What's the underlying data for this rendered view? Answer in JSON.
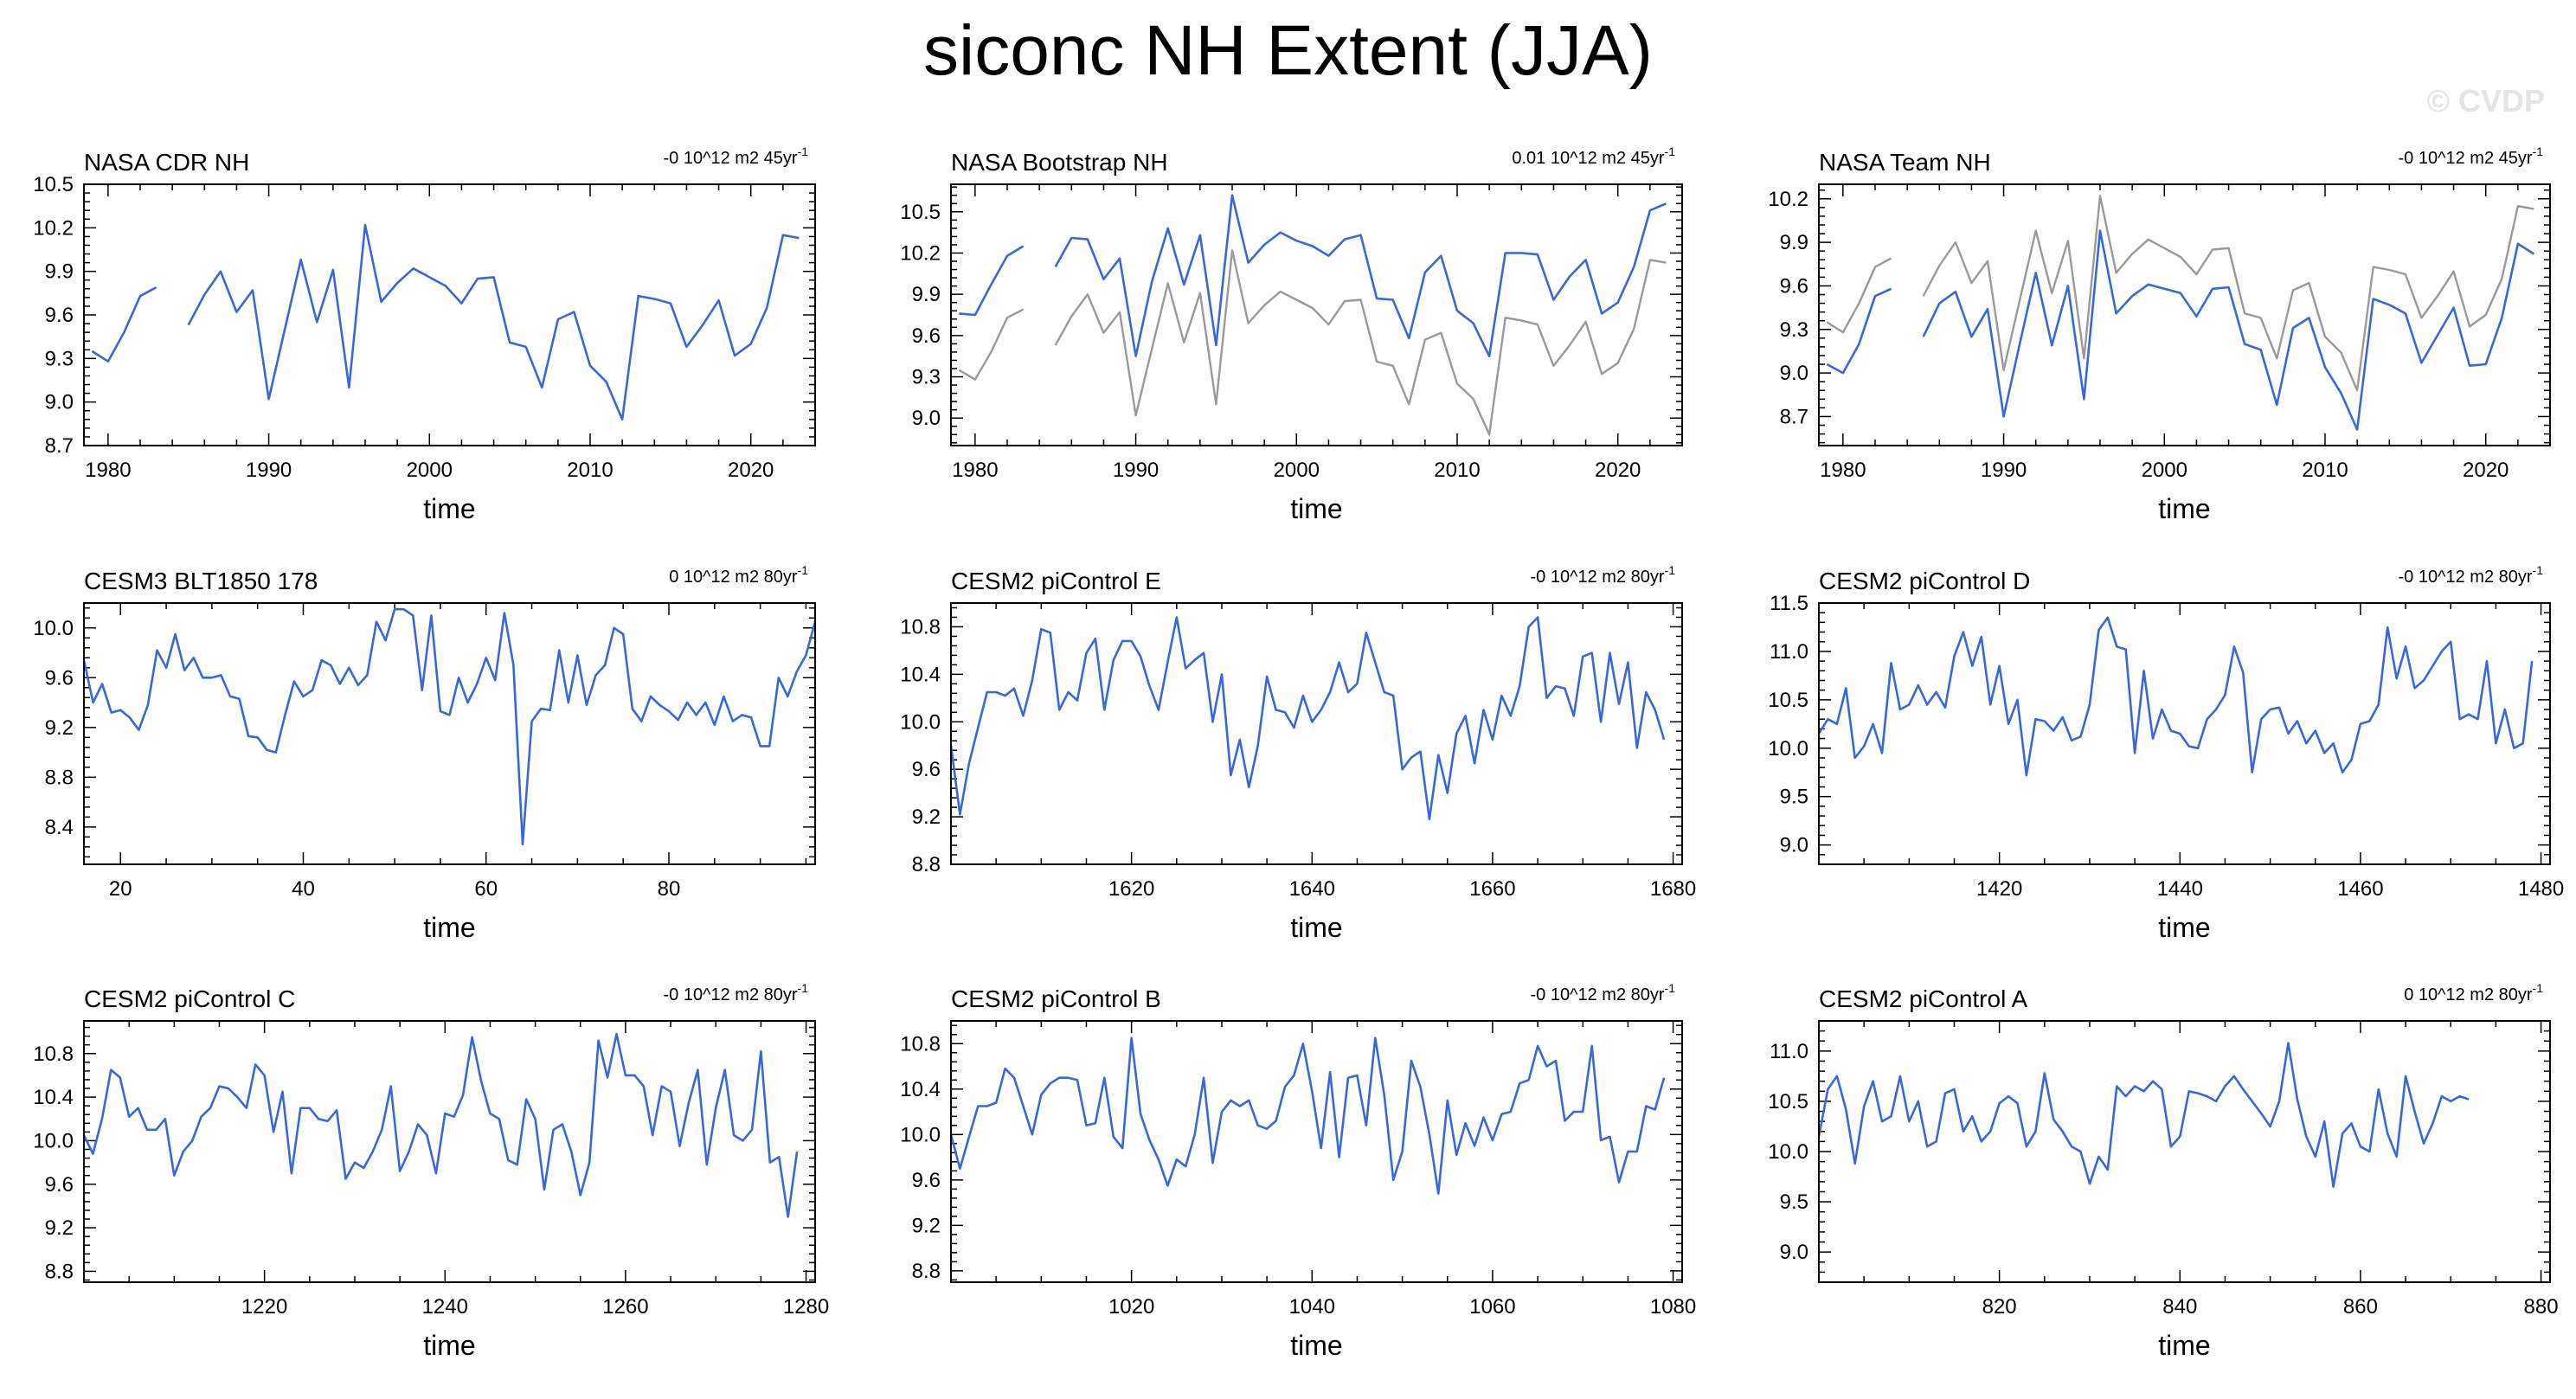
{
  "title": "siconc NH Extent (JJA)",
  "watermark": "© CVDP",
  "colors": {
    "primary_line": "#3b68d8",
    "secondary_line": "#9a9a9a",
    "axis": "#000000"
  },
  "chart_data": [
    {
      "type": "line",
      "title": "NASA CDR NH",
      "trend": "-0 10^12 m2 45yr",
      "trend_sup": "-1",
      "xlabel": "time",
      "xlim": [
        1978.5,
        2024
      ],
      "ylim": [
        8.7,
        10.5
      ],
      "xticks": [
        1980,
        1990,
        2000,
        2010,
        2020
      ],
      "yticks": [
        "8.7",
        "9.0",
        "9.3",
        "9.6",
        "9.9",
        "10.2",
        "10.5"
      ],
      "series": [
        {
          "name": "NASA CDR NH",
          "color": "#3b68d8",
          "x_start": 1979,
          "values": [
            9.35,
            9.28,
            9.48,
            9.73,
            9.79,
            null,
            9.53,
            9.74,
            9.9,
            9.62,
            9.77,
            9.02,
            9.5,
            9.98,
            9.55,
            9.91,
            9.1,
            10.22,
            9.69,
            9.82,
            9.92,
            9.86,
            9.8,
            9.68,
            9.85,
            9.86,
            9.41,
            9.38,
            9.1,
            9.57,
            9.62,
            9.25,
            9.14,
            8.88,
            9.73,
            9.71,
            9.68,
            9.38,
            9.53,
            9.7,
            9.32,
            9.4,
            9.65,
            10.15,
            10.13
          ]
        }
      ]
    },
    {
      "type": "line",
      "title": "NASA Bootstrap NH",
      "trend": "0.01 10^12 m2 45yr",
      "trend_sup": "-1",
      "xlabel": "time",
      "xlim": [
        1978.5,
        2024
      ],
      "ylim": [
        8.8,
        10.7
      ],
      "xticks": [
        1980,
        1990,
        2000,
        2010,
        2020
      ],
      "yticks": [
        "9.0",
        "9.3",
        "9.6",
        "9.9",
        "10.2",
        "10.5"
      ],
      "series": [
        {
          "name": "NASA Bootstrap NH",
          "color": "#3b68d8",
          "x_start": 1979,
          "values": [
            9.76,
            9.75,
            9.97,
            10.18,
            10.25,
            null,
            10.1,
            10.31,
            10.3,
            10.01,
            10.16,
            9.45,
            9.99,
            10.38,
            9.97,
            10.33,
            9.53,
            10.62,
            10.13,
            10.26,
            10.35,
            10.29,
            10.25,
            10.18,
            10.3,
            10.33,
            9.87,
            9.86,
            9.58,
            10.06,
            10.18,
            9.78,
            9.69,
            9.45,
            10.2,
            10.2,
            10.19,
            9.86,
            10.03,
            10.15,
            9.76,
            9.84,
            10.1,
            10.51,
            10.56
          ]
        },
        {
          "name": "NASA CDR NH",
          "color": "#9a9a9a",
          "x_start": 1979,
          "values": [
            9.35,
            9.28,
            9.48,
            9.73,
            9.79,
            null,
            9.53,
            9.74,
            9.9,
            9.62,
            9.77,
            9.02,
            9.5,
            9.98,
            9.55,
            9.91,
            9.1,
            10.22,
            9.69,
            9.82,
            9.92,
            9.86,
            9.8,
            9.68,
            9.85,
            9.86,
            9.41,
            9.38,
            9.1,
            9.57,
            9.62,
            9.25,
            9.14,
            8.88,
            9.73,
            9.71,
            9.68,
            9.38,
            9.53,
            9.7,
            9.32,
            9.4,
            9.65,
            10.15,
            10.13
          ]
        }
      ]
    },
    {
      "type": "line",
      "title": "NASA Team NH",
      "trend": "-0 10^12 m2 45yr",
      "trend_sup": "-1",
      "xlabel": "time",
      "xlim": [
        1978.5,
        2024
      ],
      "ylim": [
        8.5,
        10.3
      ],
      "xticks": [
        1980,
        1990,
        2000,
        2010,
        2020
      ],
      "yticks": [
        "8.7",
        "9.0",
        "9.3",
        "9.6",
        "9.9",
        "10.2"
      ],
      "series": [
        {
          "name": "NASA Team NH",
          "color": "#3b68d8",
          "x_start": 1979,
          "values": [
            9.06,
            9.0,
            9.2,
            9.53,
            9.58,
            null,
            9.25,
            9.48,
            9.56,
            9.25,
            9.44,
            8.7,
            9.2,
            9.69,
            9.19,
            9.6,
            8.82,
            9.98,
            9.41,
            9.53,
            9.61,
            9.58,
            9.55,
            9.39,
            9.58,
            9.59,
            9.2,
            9.16,
            8.78,
            9.31,
            9.38,
            9.04,
            8.86,
            8.61,
            9.51,
            9.47,
            9.41,
            9.07,
            9.26,
            9.45,
            9.05,
            9.06,
            9.38,
            9.89,
            9.82
          ]
        },
        {
          "name": "NASA CDR NH",
          "color": "#9a9a9a",
          "x_start": 1979,
          "values": [
            9.35,
            9.28,
            9.48,
            9.73,
            9.79,
            null,
            9.53,
            9.74,
            9.9,
            9.62,
            9.77,
            9.02,
            9.5,
            9.98,
            9.55,
            9.91,
            9.1,
            10.22,
            9.69,
            9.82,
            9.92,
            9.86,
            9.8,
            9.68,
            9.85,
            9.86,
            9.41,
            9.38,
            9.1,
            9.57,
            9.62,
            9.25,
            9.14,
            8.88,
            9.73,
            9.71,
            9.68,
            9.38,
            9.53,
            9.7,
            9.32,
            9.4,
            9.65,
            10.15,
            10.13
          ]
        }
      ]
    },
    {
      "type": "line",
      "title": "CESM3 BLT1850 178",
      "trend": "0 10^12 m2 80yr",
      "trend_sup": "-1",
      "xlabel": "time",
      "xlim": [
        16,
        96
      ],
      "ylim": [
        8.1,
        10.2
      ],
      "xticks": [
        20,
        40,
        60,
        80
      ],
      "yticks": [
        "8.4",
        "8.8",
        "9.2",
        "9.6",
        "10.0"
      ],
      "series": [
        {
          "name": "CESM3 BLT1850 178",
          "color": "#3b68d8",
          "x_start": 16,
          "values": [
            9.74,
            9.4,
            9.55,
            9.32,
            9.34,
            9.28,
            9.18,
            9.38,
            9.82,
            9.68,
            9.95,
            9.66,
            9.76,
            9.6,
            9.6,
            9.62,
            9.45,
            9.43,
            9.13,
            9.12,
            9.02,
            9.0,
            9.3,
            9.57,
            9.45,
            9.5,
            9.74,
            9.7,
            9.55,
            9.68,
            9.54,
            9.62,
            10.05,
            9.9,
            10.15,
            10.15,
            10.1,
            9.5,
            10.1,
            9.33,
            9.3,
            9.6,
            9.4,
            9.55,
            9.76,
            9.58,
            10.12,
            9.7,
            8.26,
            9.25,
            9.35,
            9.34,
            9.82,
            9.4,
            9.78,
            9.38,
            9.62,
            9.7,
            10.0,
            9.95,
            9.35,
            9.25,
            9.45,
            9.38,
            9.33,
            9.26,
            9.4,
            9.3,
            9.4,
            9.22,
            9.45,
            9.25,
            9.3,
            9.28,
            9.05,
            9.05,
            9.6,
            9.45,
            9.65,
            9.78,
            10.05
          ]
        }
      ]
    },
    {
      "type": "line",
      "title": "CESM2 piControl E",
      "trend": "-0 10^12 m2 80yr",
      "trend_sup": "-1",
      "xlabel": "time",
      "xlim": [
        1600,
        1681
      ],
      "ylim": [
        8.8,
        11.0
      ],
      "xticks": [
        1620,
        1640,
        1660,
        1680
      ],
      "yticks": [
        "8.8",
        "9.2",
        "9.6",
        "10.0",
        "10.4",
        "10.8"
      ],
      "series": [
        {
          "name": "CESM2 piControl E",
          "color": "#3b68d8",
          "x_start": 1600,
          "values": [
            9.8,
            9.22,
            9.65,
            9.95,
            10.25,
            10.25,
            10.22,
            10.28,
            10.05,
            10.35,
            10.78,
            10.75,
            10.1,
            10.25,
            10.18,
            10.58,
            10.7,
            10.1,
            10.52,
            10.68,
            10.68,
            10.55,
            10.3,
            10.1,
            10.5,
            10.88,
            10.45,
            10.52,
            10.58,
            10.0,
            10.4,
            9.55,
            9.85,
            9.45,
            9.8,
            10.38,
            10.1,
            10.08,
            9.95,
            10.22,
            10.0,
            10.1,
            10.25,
            10.5,
            10.25,
            10.32,
            10.75,
            10.5,
            10.25,
            10.22,
            9.6,
            9.7,
            9.75,
            9.18,
            9.72,
            9.4,
            9.9,
            10.05,
            9.65,
            10.1,
            9.85,
            10.22,
            10.05,
            10.3,
            10.8,
            10.88,
            10.2,
            10.3,
            10.28,
            10.05,
            10.55,
            10.58,
            10.0,
            10.58,
            10.15,
            10.5,
            9.78,
            10.25,
            10.1,
            9.85
          ]
        }
      ]
    },
    {
      "type": "line",
      "title": "CESM2 piControl D",
      "trend": "-0 10^12 m2 80yr",
      "trend_sup": "-1",
      "xlabel": "time",
      "xlim": [
        1400,
        1481
      ],
      "ylim": [
        8.8,
        11.5
      ],
      "xticks": [
        1420,
        1440,
        1460,
        1480
      ],
      "yticks": [
        "9.0",
        "9.5",
        "10.0",
        "10.5",
        "11.0",
        "11.5"
      ],
      "series": [
        {
          "name": "CESM2 piControl D",
          "color": "#3b68d8",
          "x_start": 1400,
          "values": [
            10.15,
            10.3,
            10.25,
            10.62,
            9.9,
            10.02,
            10.25,
            9.95,
            10.88,
            10.4,
            10.45,
            10.65,
            10.45,
            10.58,
            10.42,
            10.95,
            11.2,
            10.85,
            11.15,
            10.45,
            10.85,
            10.25,
            10.5,
            9.72,
            10.3,
            10.28,
            10.18,
            10.32,
            10.08,
            10.12,
            10.45,
            11.22,
            11.35,
            11.05,
            11.02,
            9.95,
            10.8,
            10.1,
            10.4,
            10.18,
            10.15,
            10.02,
            10.0,
            10.3,
            10.4,
            10.55,
            11.05,
            10.78,
            9.75,
            10.3,
            10.4,
            10.42,
            10.15,
            10.28,
            10.05,
            10.18,
            9.95,
            10.05,
            9.75,
            9.88,
            10.25,
            10.28,
            10.45,
            11.25,
            10.72,
            11.05,
            10.62,
            10.7,
            10.85,
            11.0,
            11.1,
            10.3,
            10.35,
            10.3,
            10.9,
            10.05,
            10.4,
            10.0,
            10.05,
            10.9
          ]
        }
      ]
    },
    {
      "type": "line",
      "title": "CESM2 piControl C",
      "trend": "-0 10^12 m2 80yr",
      "trend_sup": "-1",
      "xlabel": "time",
      "xlim": [
        1200,
        1281
      ],
      "ylim": [
        8.7,
        11.1
      ],
      "xticks": [
        1220,
        1240,
        1260,
        1280
      ],
      "yticks": [
        "8.8",
        "9.2",
        "9.6",
        "10.0",
        "10.4",
        "10.8"
      ],
      "series": [
        {
          "name": "CESM2 piControl C",
          "color": "#3b68d8",
          "x_start": 1200,
          "values": [
            10.05,
            9.88,
            10.2,
            10.65,
            10.58,
            10.22,
            10.3,
            10.1,
            10.1,
            10.2,
            9.68,
            9.9,
            10.0,
            10.22,
            10.3,
            10.5,
            10.48,
            10.4,
            10.3,
            10.7,
            10.6,
            10.08,
            10.45,
            9.7,
            10.3,
            10.3,
            10.2,
            10.18,
            10.28,
            9.65,
            9.8,
            9.75,
            9.9,
            10.1,
            10.5,
            9.72,
            9.9,
            10.15,
            10.05,
            9.7,
            10.25,
            10.22,
            10.42,
            10.95,
            10.55,
            10.25,
            10.2,
            9.82,
            9.78,
            10.38,
            10.2,
            9.55,
            10.1,
            10.15,
            9.9,
            9.5,
            9.8,
            10.92,
            10.58,
            10.98,
            10.6,
            10.6,
            10.5,
            10.05,
            10.5,
            10.45,
            9.95,
            10.35,
            10.65,
            9.78,
            10.3,
            10.65,
            10.05,
            10.0,
            10.1,
            10.82,
            9.8,
            9.85,
            9.3,
            9.9
          ]
        }
      ]
    },
    {
      "type": "line",
      "title": "CESM2 piControl B",
      "trend": "-0 10^12 m2 80yr",
      "trend_sup": "-1",
      "xlabel": "time",
      "xlim": [
        1000,
        1081
      ],
      "ylim": [
        8.7,
        11.0
      ],
      "xticks": [
        1020,
        1040,
        1060,
        1080
      ],
      "yticks": [
        "8.8",
        "9.2",
        "9.6",
        "10.0",
        "10.4",
        "10.8"
      ],
      "series": [
        {
          "name": "CESM2 piControl B",
          "color": "#3b68d8",
          "x_start": 1000,
          "values": [
            10.0,
            9.7,
            9.98,
            10.25,
            10.25,
            10.28,
            10.58,
            10.5,
            10.25,
            10.0,
            10.35,
            10.45,
            10.5,
            10.5,
            10.48,
            10.08,
            10.1,
            10.5,
            9.98,
            9.88,
            10.85,
            10.18,
            9.95,
            9.78,
            9.55,
            9.78,
            9.72,
            10.0,
            10.5,
            9.75,
            10.2,
            10.3,
            10.25,
            10.3,
            10.08,
            10.05,
            10.12,
            10.42,
            10.52,
            10.8,
            10.38,
            9.88,
            10.55,
            9.8,
            10.5,
            10.52,
            10.08,
            10.85,
            10.35,
            9.6,
            9.85,
            10.65,
            10.42,
            10.0,
            9.48,
            10.3,
            9.82,
            10.1,
            9.9,
            10.15,
            9.95,
            10.18,
            10.2,
            10.45,
            10.48,
            10.78,
            10.6,
            10.65,
            10.12,
            10.2,
            10.2,
            10.78,
            9.95,
            9.98,
            9.58,
            9.85,
            9.85,
            10.25,
            10.22,
            10.5
          ]
        }
      ]
    },
    {
      "type": "line",
      "title": "CESM2 piControl A",
      "trend": "0 10^12 m2 80yr",
      "trend_sup": "-1",
      "xlabel": "time",
      "xlim": [
        800,
        881
      ],
      "ylim": [
        8.7,
        11.3
      ],
      "xticks": [
        820,
        840,
        860,
        880
      ],
      "yticks": [
        "9.0",
        "9.5",
        "10.0",
        "10.5",
        "11.0"
      ],
      "series": [
        {
          "name": "CESM2 piControl A",
          "color": "#3b68d8",
          "x_start": 800,
          "values": [
            10.15,
            10.62,
            10.75,
            10.42,
            9.88,
            10.45,
            10.7,
            10.3,
            10.35,
            10.75,
            10.3,
            10.5,
            10.05,
            10.1,
            10.58,
            10.62,
            10.2,
            10.35,
            10.1,
            10.2,
            10.48,
            10.55,
            10.48,
            10.05,
            10.2,
            10.78,
            10.32,
            10.2,
            10.05,
            10.0,
            9.68,
            9.95,
            9.82,
            10.65,
            10.55,
            10.65,
            10.6,
            10.7,
            10.62,
            10.05,
            10.15,
            10.6,
            10.58,
            10.55,
            10.5,
            10.65,
            10.75,
            10.62,
            10.5,
            10.38,
            10.25,
            10.5,
            11.08,
            10.52,
            10.15,
            9.95,
            10.3,
            9.65,
            10.18,
            10.28,
            10.05,
            10.0,
            10.62,
            10.18,
            9.95,
            10.75,
            10.4,
            10.08,
            10.28,
            10.55,
            10.5,
            10.55,
            10.52
          ]
        }
      ]
    }
  ]
}
